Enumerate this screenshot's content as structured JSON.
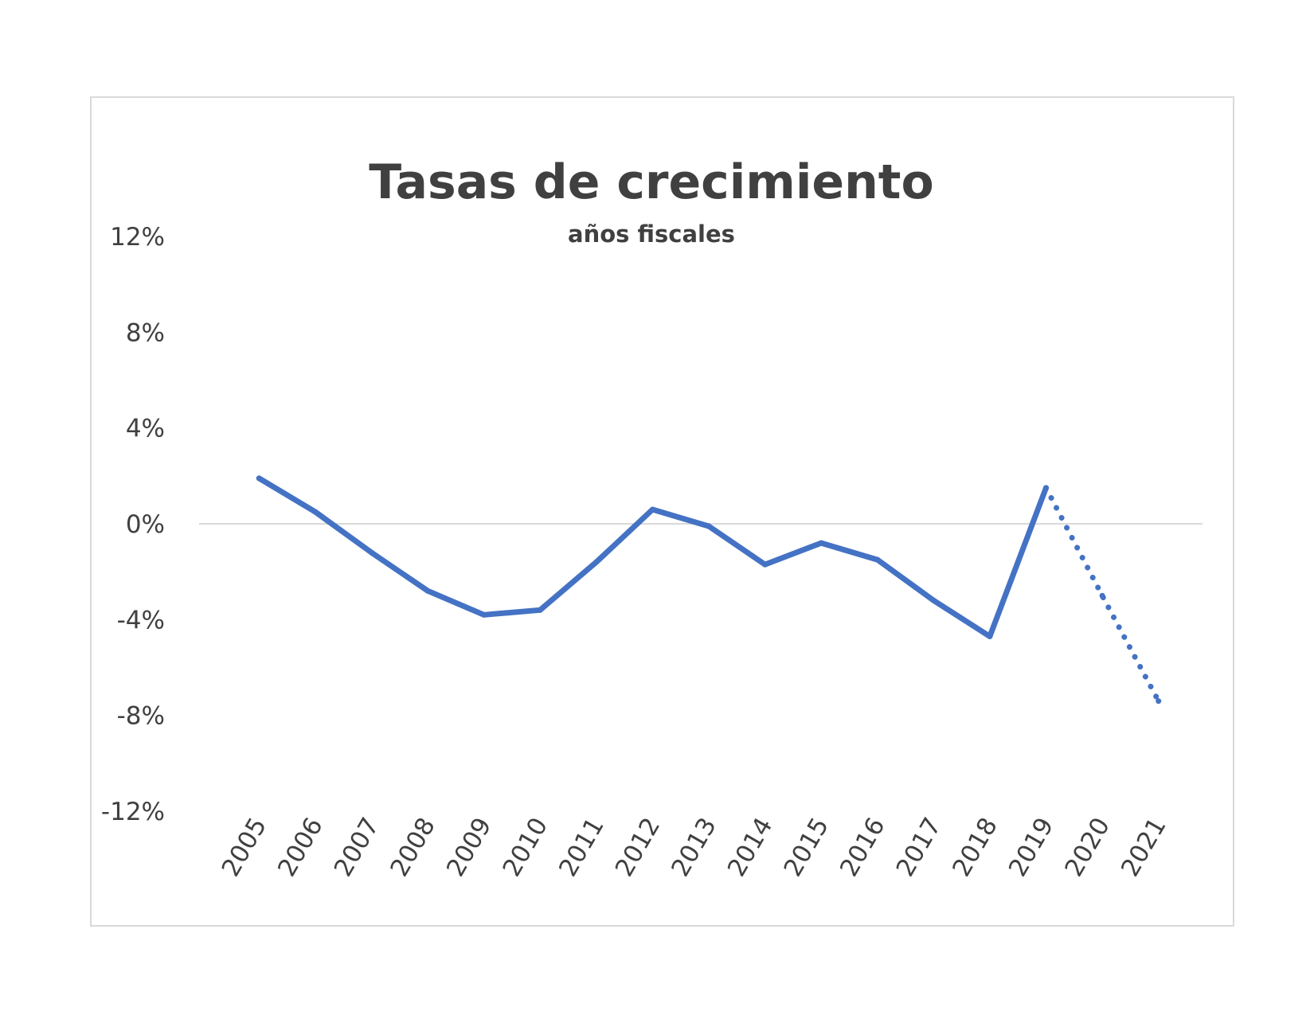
{
  "chart_data": {
    "type": "line",
    "title": "Tasas de crecimiento",
    "subtitle": "años fiscales",
    "xlabel": "",
    "ylabel": "",
    "categories": [
      "2005",
      "2006",
      "2007",
      "2008",
      "2009",
      "2010",
      "2011",
      "2012",
      "2013",
      "2014",
      "2015",
      "2016",
      "2017",
      "2018",
      "2019",
      "2020",
      "2021"
    ],
    "series": [
      {
        "values": [
          1.9,
          0.5,
          -1.2,
          -2.8,
          -3.8,
          -3.6,
          -1.6,
          0.6,
          -0.1,
          -1.7,
          -0.8,
          -1.5,
          -3.2,
          -4.7,
          1.5,
          null,
          null
        ],
        "style": "solid",
        "color": "#4472c4"
      },
      {
        "values": [
          null,
          null,
          null,
          null,
          null,
          null,
          null,
          null,
          null,
          null,
          null,
          null,
          null,
          null,
          1.5,
          -3.0,
          -7.4
        ],
        "style": "dotted",
        "color": "#4472c4"
      }
    ],
    "ylim": [
      -12,
      12
    ],
    "yticks": [
      12,
      8,
      4,
      0,
      -4,
      -8,
      -12
    ],
    "ytick_labels": [
      "12%",
      "8%",
      "4%",
      "0%",
      "-4%",
      "-8%",
      "-12%"
    ],
    "grid": false,
    "zero_line": true,
    "legend": "none"
  }
}
